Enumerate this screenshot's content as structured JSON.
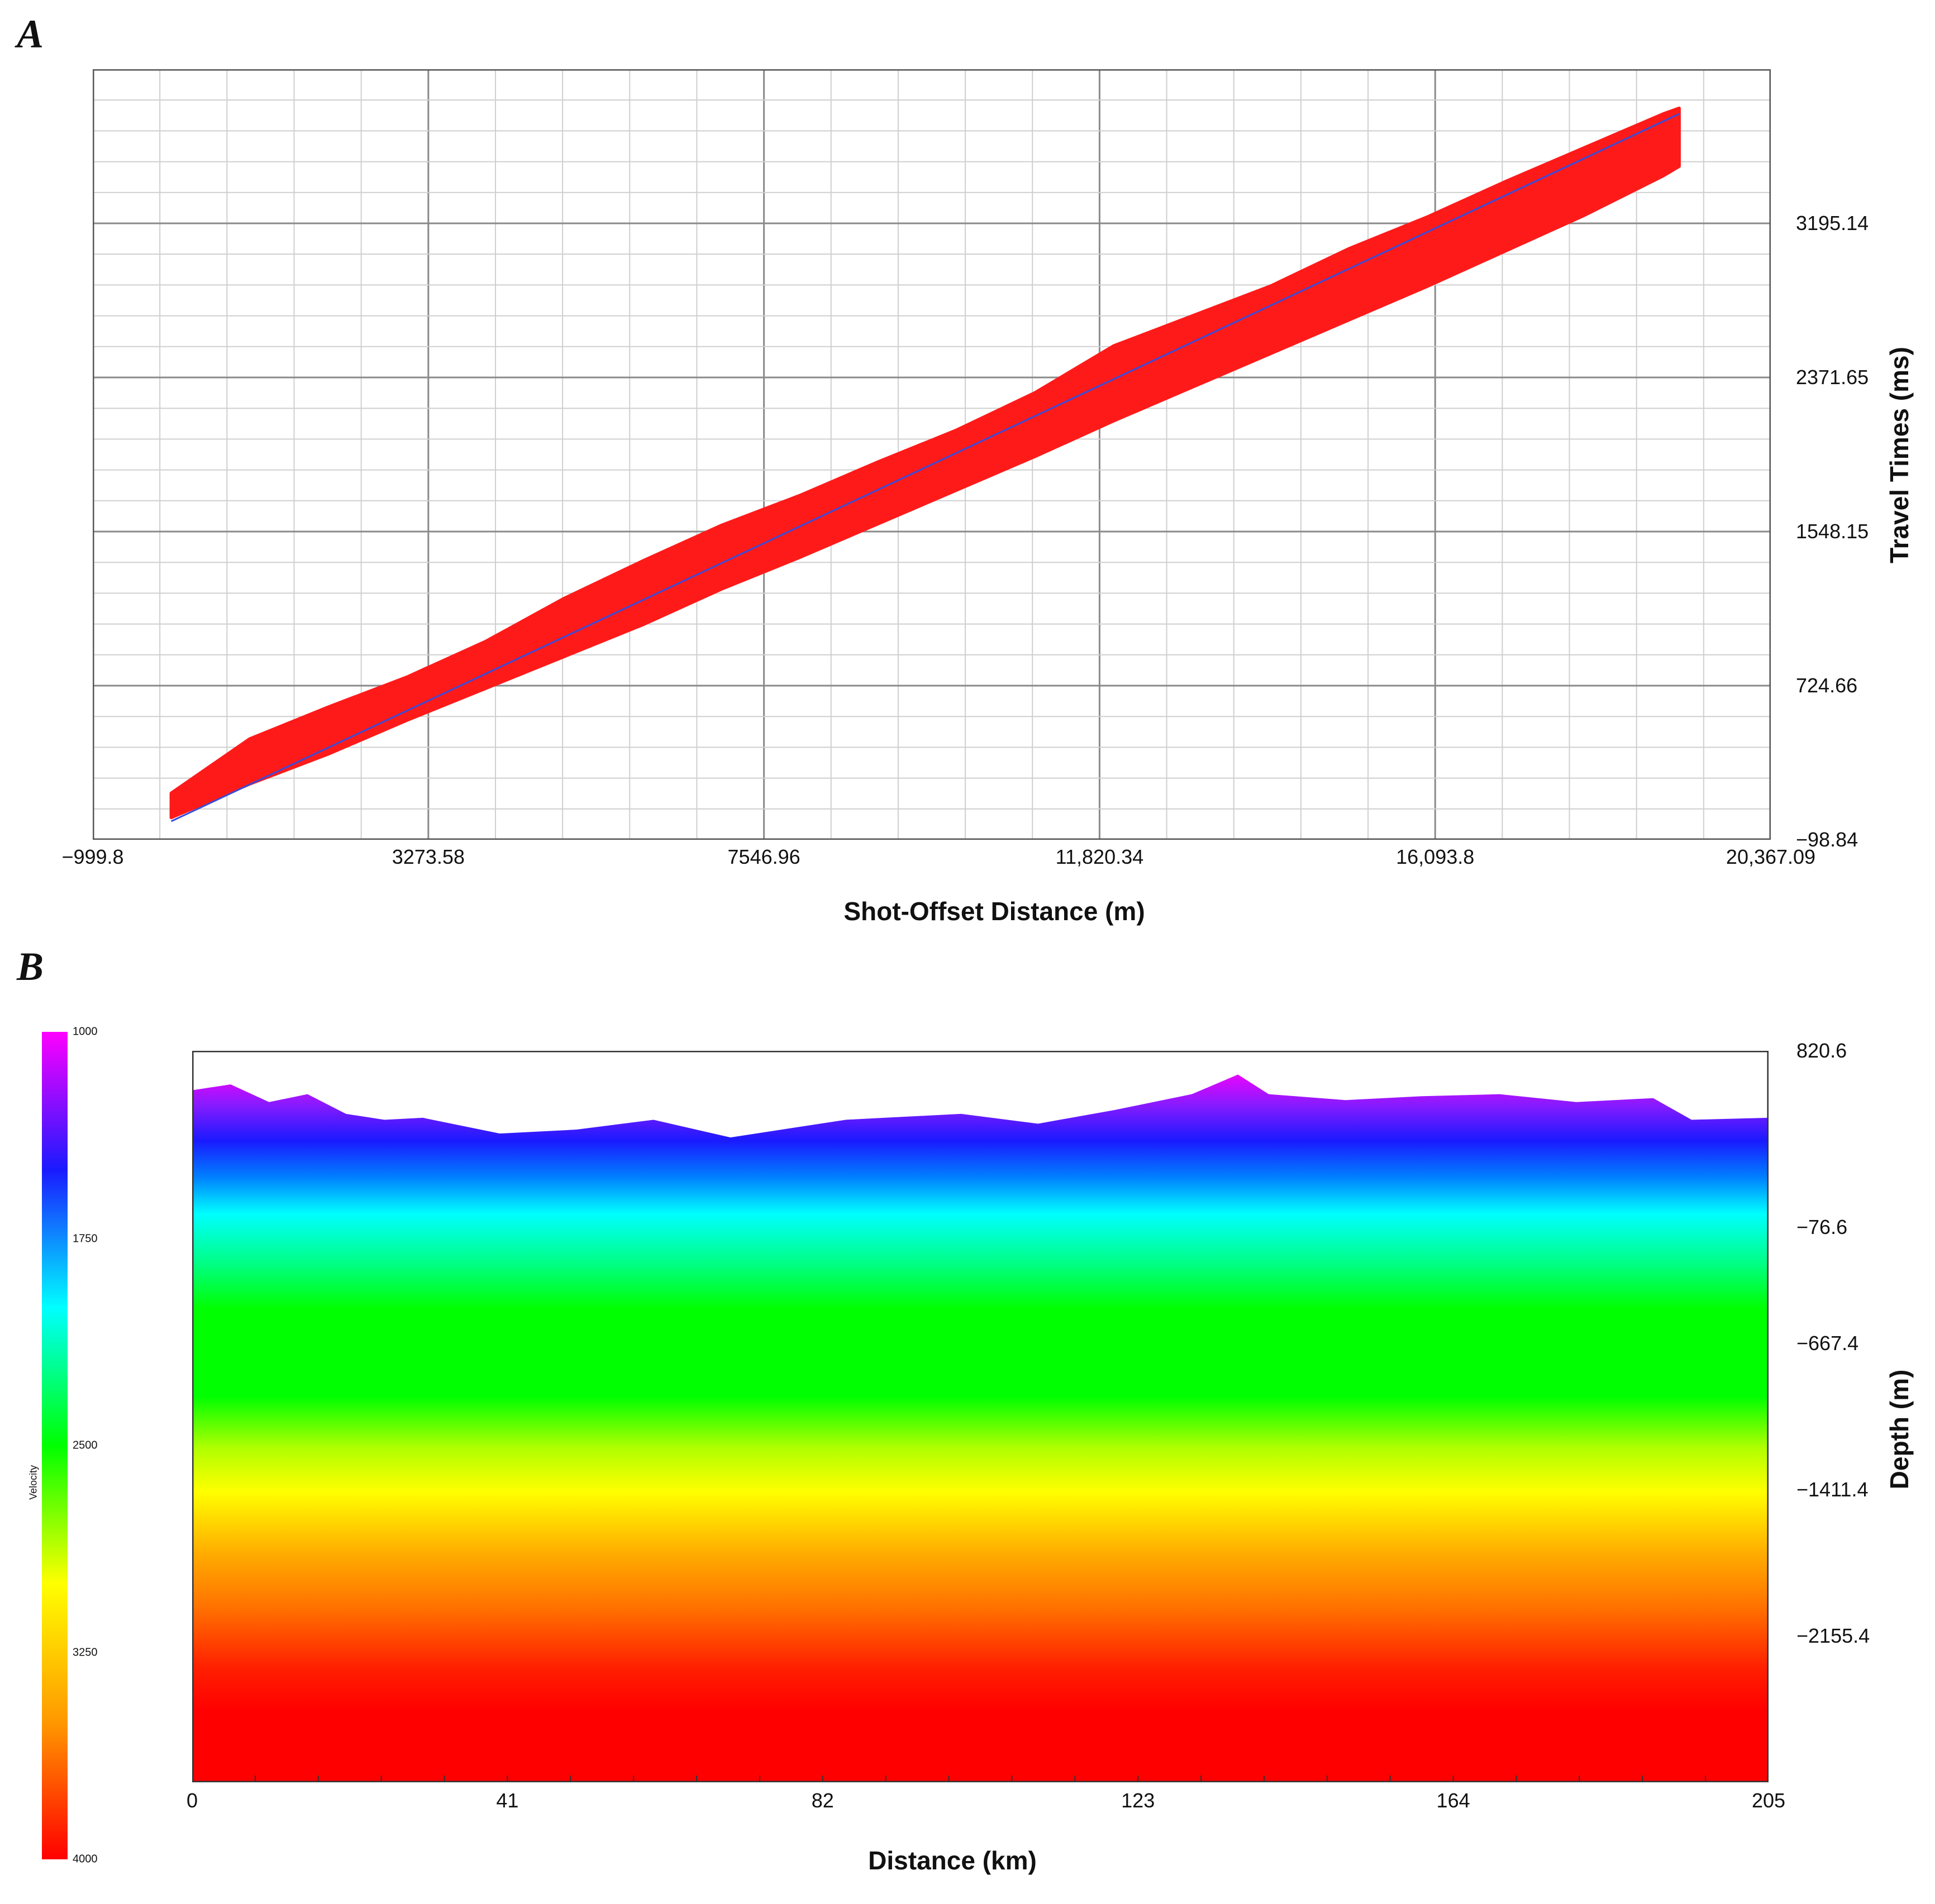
{
  "panel_a_label": "A",
  "panel_b_label": "B",
  "chart_data": [
    {
      "type": "scatter",
      "title": "",
      "xlabel": "Shot-Offset Distance (m)",
      "ylabel": "Travel Times (ms)",
      "xlim": [
        -999.8,
        20367.09
      ],
      "ylim": [
        -98.84,
        4018.6
      ],
      "x_tick_labels": [
        "−999.8",
        "3273.58",
        "7546.96",
        "11,820.34",
        "16,093.8",
        "20,367.09"
      ],
      "x_tick_values": [
        -999.8,
        3273.58,
        7546.96,
        11820.34,
        16093.8,
        20367.09
      ],
      "y_tick_labels": [
        "−98.84",
        "724.66",
        "1548.15",
        "2371.65",
        "3195.14"
      ],
      "y_tick_values": [
        -98.84,
        724.66,
        1548.15,
        2371.65,
        3195.14
      ],
      "grid": true,
      "point_color": "#ff1a1a",
      "fit_line_color": "#3b4bd8",
      "fit_line": {
        "x": [
          0,
          19200
        ],
        "y": [
          0,
          3780
        ]
      },
      "band_upper": {
        "x": [
          0,
          1000,
          2000,
          3000,
          4000,
          5000,
          6000,
          7000,
          8000,
          9000,
          10000,
          11000,
          12000,
          13000,
          14000,
          15000,
          16000,
          17000,
          18000,
          19000,
          19200
        ],
        "y": [
          150,
          440,
          610,
          770,
          960,
          1190,
          1390,
          1580,
          1740,
          1920,
          2090,
          2290,
          2540,
          2700,
          2860,
          3060,
          3230,
          3420,
          3600,
          3780,
          3810
        ]
      },
      "band_lower": {
        "x": [
          0,
          1000,
          2000,
          3000,
          4000,
          5000,
          6000,
          7000,
          8000,
          9000,
          10000,
          11000,
          12000,
          13000,
          14000,
          15000,
          16000,
          17000,
          18000,
          19000,
          19200
        ],
        "y": [
          20,
          200,
          360,
          540,
          710,
          880,
          1050,
          1240,
          1410,
          1590,
          1770,
          1950,
          2140,
          2320,
          2500,
          2680,
          2860,
          3050,
          3240,
          3450,
          3500
        ]
      }
    },
    {
      "type": "heatmap",
      "title": "",
      "xlabel": "Distance (km)",
      "ylabel": "Depth (m)",
      "xlim": [
        0,
        205
      ],
      "ylim": [
        -2900,
        820.6
      ],
      "x_tick_labels": [
        "0",
        "41",
        "82",
        "123",
        "164",
        "205"
      ],
      "x_tick_values": [
        0,
        41,
        82,
        123,
        164,
        205
      ],
      "y_tick_labels": [
        "820.6",
        "−76.6",
        "−667.4",
        "−1411.4",
        "−2155.4"
      ],
      "y_tick_values": [
        820.6,
        -76.6,
        -667.4,
        -1411.4,
        -2155.4
      ],
      "colorbar": {
        "title": "Velocity",
        "tick_labels": [
          "1000",
          "1750",
          "2500",
          "3250",
          "4000"
        ],
        "tick_values": [
          1000,
          1750,
          2500,
          3250,
          4000
        ],
        "colors": [
          "#ff00ff",
          "#1a1aff",
          "#00ffff",
          "#00ff00",
          "#ffff00",
          "#ff9900",
          "#ff0000"
        ]
      },
      "surface_profile": {
        "x": [
          0,
          5,
          10,
          15,
          20,
          25,
          30,
          40,
          50,
          60,
          70,
          80,
          85,
          90,
          100,
          110,
          120,
          125,
          130,
          136,
          140,
          150,
          160,
          170,
          180,
          190,
          195,
          205
        ],
        "y": [
          620,
          650,
          560,
          600,
          500,
          470,
          480,
          400,
          420,
          470,
          380,
          440,
          470,
          480,
          500,
          450,
          520,
          560,
          600,
          700,
          600,
          570,
          590,
          600,
          560,
          580,
          470,
          480
        ]
      }
    }
  ]
}
